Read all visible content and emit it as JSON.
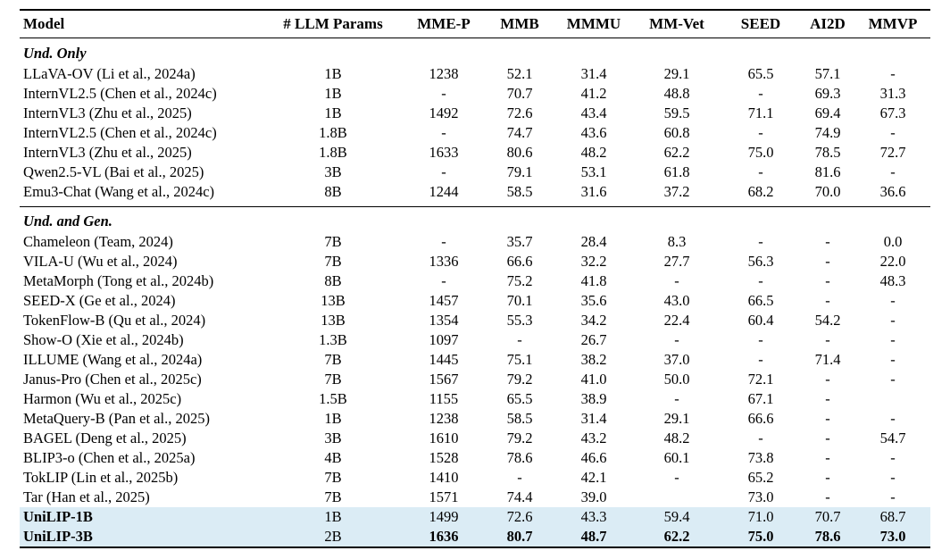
{
  "table": {
    "colors": {
      "highlight": "#dbecf5",
      "rule": "#000000"
    },
    "columns": [
      "Model",
      "# LLM Params",
      "MME-P",
      "MMB",
      "MMMU",
      "MM-Vet",
      "SEED",
      "AI2D",
      "MMVP"
    ],
    "sections": [
      {
        "label": "Und. Only",
        "rows": [
          {
            "model": "LLaVA-OV (Li et al., 2024a)",
            "values": [
              "1B",
              "1238",
              "52.1",
              "31.4",
              "29.1",
              "65.5",
              "57.1",
              "-"
            ]
          },
          {
            "model": "InternVL2.5 (Chen et al., 2024c)",
            "values": [
              "1B",
              "-",
              "70.7",
              "41.2",
              "48.8",
              "-",
              "69.3",
              "31.3"
            ]
          },
          {
            "model": "InternVL3 (Zhu et al., 2025)",
            "values": [
              "1B",
              "1492",
              "72.6",
              "43.4",
              "59.5",
              "71.1",
              "69.4",
              "67.3"
            ]
          },
          {
            "model": "InternVL2.5 (Chen et al., 2024c)",
            "values": [
              "1.8B",
              "-",
              "74.7",
              "43.6",
              "60.8",
              "-",
              "74.9",
              "-"
            ]
          },
          {
            "model": "InternVL3 (Zhu et al., 2025)",
            "values": [
              "1.8B",
              "1633",
              "80.6",
              "48.2",
              "62.2",
              "75.0",
              "78.5",
              "72.7"
            ]
          },
          {
            "model": "Qwen2.5-VL (Bai et al., 2025)",
            "values": [
              "3B",
              "-",
              "79.1",
              "53.1",
              "61.8",
              "-",
              "81.6",
              "-"
            ]
          },
          {
            "model": "Emu3-Chat (Wang et al., 2024c)",
            "values": [
              "8B",
              "1244",
              "58.5",
              "31.6",
              "37.2",
              "68.2",
              "70.0",
              "36.6"
            ]
          }
        ]
      },
      {
        "label": "Und. and Gen.",
        "rows": [
          {
            "model": "Chameleon (Team, 2024)",
            "values": [
              "7B",
              "-",
              "35.7",
              "28.4",
              "8.3",
              "-",
              "-",
              "0.0"
            ]
          },
          {
            "model": "VILA-U (Wu et al., 2024)",
            "values": [
              "7B",
              "1336",
              "66.6",
              "32.2",
              "27.7",
              "56.3",
              "-",
              "22.0"
            ]
          },
          {
            "model": "MetaMorph (Tong et al., 2024b)",
            "values": [
              "8B",
              "-",
              "75.2",
              "41.8",
              "-",
              "-",
              "-",
              "48.3"
            ]
          },
          {
            "model": "SEED-X (Ge et al., 2024)",
            "values": [
              "13B",
              "1457",
              "70.1",
              "35.6",
              "43.0",
              "66.5",
              "-",
              "-"
            ]
          },
          {
            "model": "TokenFlow-B (Qu et al., 2024)",
            "values": [
              "13B",
              "1354",
              "55.3",
              "34.2",
              "22.4",
              "60.4",
              "54.2",
              "-"
            ]
          },
          {
            "model": "Show-O (Xie et al., 2024b)",
            "values": [
              "1.3B",
              "1097",
              "-",
              "26.7",
              "-",
              "-",
              "-",
              "-"
            ]
          },
          {
            "model": "ILLUME (Wang et al., 2024a)",
            "values": [
              "7B",
              "1445",
              "75.1",
              "38.2",
              "37.0",
              "-",
              "71.4",
              "-"
            ]
          },
          {
            "model": "Janus-Pro (Chen et al., 2025c)",
            "values": [
              "7B",
              "1567",
              "79.2",
              "41.0",
              "50.0",
              "72.1",
              "-",
              "-"
            ]
          },
          {
            "model": "Harmon (Wu et al., 2025c)",
            "values": [
              "1.5B",
              "1155",
              "65.5",
              "38.9",
              "-",
              "67.1",
              "-",
              ""
            ]
          },
          {
            "model": "MetaQuery-B (Pan et al., 2025)",
            "values": [
              "1B",
              "1238",
              "58.5",
              "31.4",
              "29.1",
              "66.6",
              "-",
              "-"
            ]
          },
          {
            "model": "BAGEL (Deng et al., 2025)",
            "values": [
              "3B",
              "1610",
              "79.2",
              "43.2",
              "48.2",
              "-",
              "-",
              "54.7"
            ]
          },
          {
            "model": "BLIP3-o (Chen et al., 2025a)",
            "values": [
              "4B",
              "1528",
              "78.6",
              "46.6",
              "60.1",
              "73.8",
              "-",
              "-"
            ]
          },
          {
            "model": "TokLIP (Lin et al., 2025b)",
            "values": [
              "7B",
              "1410",
              "-",
              "42.1",
              "-",
              "65.2",
              "-",
              "-"
            ]
          },
          {
            "model": "Tar (Han et al., 2025)",
            "values": [
              "7B",
              "1571",
              "74.4",
              "39.0",
              "",
              "73.0",
              "-",
              "-"
            ]
          },
          {
            "model": "UniLIP-1B",
            "highlight": true,
            "bold_model": true,
            "values": [
              "1B",
              "1499",
              "72.6",
              "43.3",
              "59.4",
              "71.0",
              "70.7",
              "68.7"
            ]
          },
          {
            "model": "UniLIP-3B",
            "highlight": true,
            "bold_model": true,
            "bold_value_indices": [
              1,
              2,
              3,
              4,
              5,
              6,
              7
            ],
            "values": [
              "2B",
              "1636",
              "80.7",
              "48.7",
              "62.2",
              "75.0",
              "78.6",
              "73.0"
            ]
          }
        ]
      }
    ]
  }
}
